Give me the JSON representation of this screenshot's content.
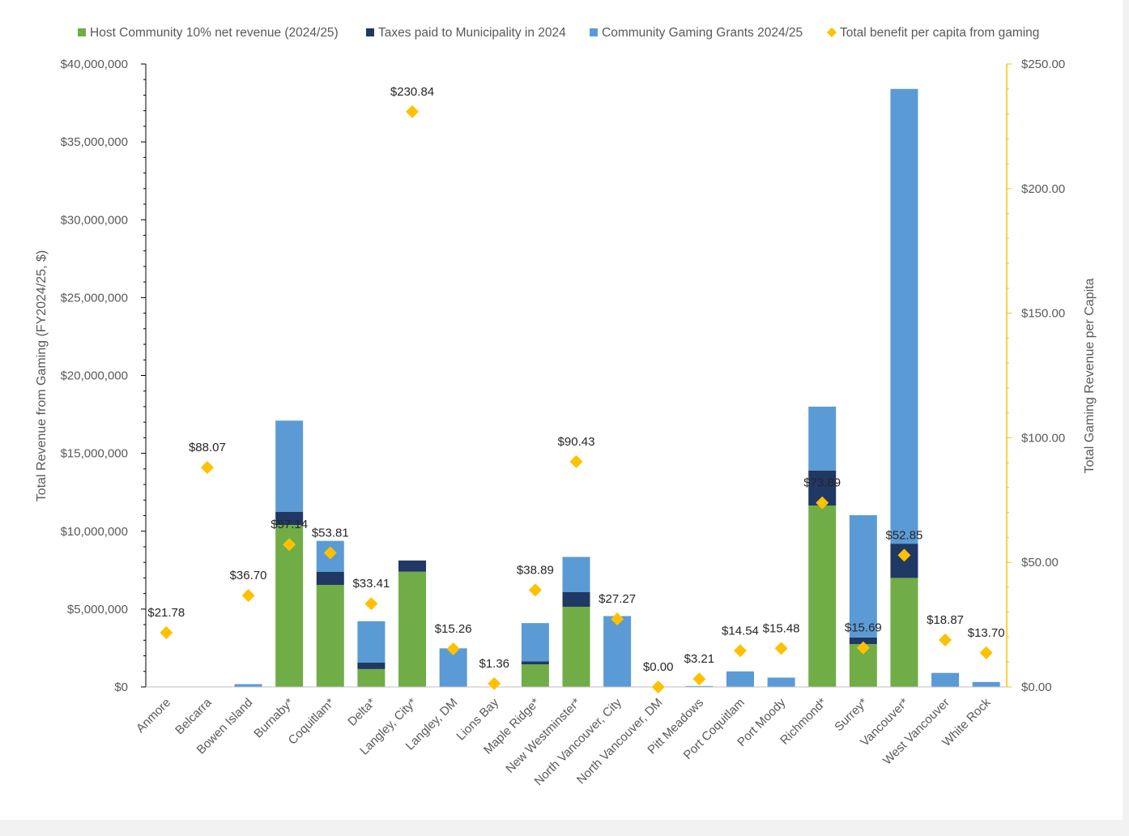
{
  "chart_data": {
    "type": "bar",
    "stacked": true,
    "title": "",
    "categories": [
      "Anmore",
      "Belcarra",
      "Bowen Island",
      "Burnaby*",
      "Coquitlam*",
      "Delta*",
      "Langley, City*",
      "Langley, DM",
      "Lions Bay",
      "Maple Ridge*",
      "New Westminster*",
      "North Vancouver, City",
      "North Vancouver, DM",
      "Pitt Meadows",
      "Port Coquitlam",
      "Port Moody",
      "Richmond*",
      "Surrey*",
      "Vancouver*",
      "West Vancouver",
      "White Rock"
    ],
    "series": [
      {
        "name": "Host Community 10% net revenue (2024/25)",
        "color": "#70ad47",
        "axis": "left",
        "values": [
          0,
          0,
          0,
          10400000,
          6550000,
          1150000,
          7400000,
          0,
          0,
          1450000,
          5150000,
          0,
          0,
          0,
          0,
          0,
          11650000,
          2750000,
          7000000,
          0,
          0
        ]
      },
      {
        "name": "Taxes paid to Municipality in 2024",
        "color": "#1f3864",
        "axis": "left",
        "values": [
          0,
          0,
          0,
          850000,
          850000,
          420000,
          720000,
          0,
          0,
          200000,
          950000,
          0,
          0,
          0,
          0,
          0,
          2250000,
          430000,
          2200000,
          0,
          0
        ]
      },
      {
        "name": "Community Gaming Grants 2024/25",
        "color": "#5b9bd5",
        "axis": "left",
        "values": [
          0,
          0,
          180000,
          5850000,
          1980000,
          2650000,
          0,
          2480000,
          0,
          2450000,
          2250000,
          4550000,
          0,
          60000,
          1000000,
          600000,
          4100000,
          7850000,
          29200000,
          900000,
          320000
        ]
      },
      {
        "name": "Total benefit per capita from gaming",
        "color": "#ffc000",
        "axis": "right",
        "marker": "diamond",
        "values": [
          21.78,
          88.07,
          36.7,
          57.14,
          53.81,
          33.41,
          230.84,
          15.26,
          1.36,
          38.89,
          90.43,
          27.27,
          0.0,
          3.21,
          14.54,
          15.48,
          73.89,
          15.69,
          52.85,
          18.87,
          13.7
        ],
        "labels": [
          "$21.78",
          "$88.07",
          "$36.70",
          "$57.14",
          "$53.81",
          "$33.41",
          "$230.84",
          "$15.26",
          "$1.36",
          "$38.89",
          "$90.43",
          "$27.27",
          "$0.00",
          "$3.21",
          "$14.54",
          "$15.48",
          "$73.89",
          "$15.69",
          "$52.85",
          "$18.87",
          "$13.70"
        ]
      }
    ],
    "ylabel": "Total Revenue from Gaming (FY2024/25, $)",
    "ylim": [
      0,
      40000000
    ],
    "yticks": [
      0,
      5000000,
      10000000,
      15000000,
      20000000,
      25000000,
      30000000,
      35000000,
      40000000
    ],
    "yticklabels": [
      "$0",
      "$5,000,000",
      "$10,000,000",
      "$15,000,000",
      "$20,000,000",
      "$25,000,000",
      "$30,000,000",
      "$35,000,000",
      "$40,000,000"
    ],
    "y2label": "Total Gaming  Revenue per Capita",
    "y2lim": [
      0,
      250
    ],
    "y2ticks": [
      0,
      50,
      100,
      150,
      200,
      250
    ],
    "y2ticklabels": [
      "$0.00",
      "$50.00",
      "$100.00",
      "$150.00",
      "$200.00",
      "$250.00"
    ],
    "grid": false,
    "legend_position": "top"
  }
}
